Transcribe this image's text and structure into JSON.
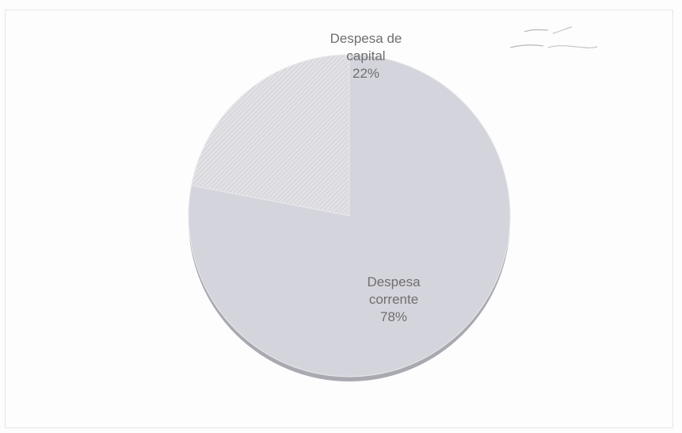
{
  "chart_data": {
    "type": "pie",
    "slices": [
      {
        "label_lines": [
          "Despesa de",
          "capital"
        ],
        "percent_label": "22%",
        "value": 22,
        "color": "#dcdce0",
        "pattern": "hatch"
      },
      {
        "label_lines": [
          "Despesa",
          "corrente"
        ],
        "percent_label": "78%",
        "value": 78,
        "color": "#d4d4dc",
        "pattern": "solid"
      }
    ],
    "start_angle_deg": 0,
    "direction": "clockwise",
    "legend": "none"
  }
}
